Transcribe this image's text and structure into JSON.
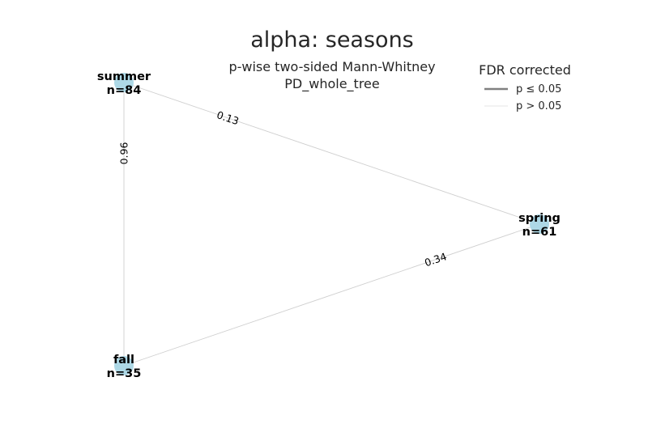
{
  "title": "alpha: seasons",
  "subtitle_lines": [
    "p-wise two-sided Mann-Whitney",
    "PD_whole_tree"
  ],
  "legend": {
    "title": "FDR corrected",
    "entries": [
      {
        "label": "p ≤ 0.05",
        "color": "#808080",
        "style": "thick"
      },
      {
        "label": "p > 0.05",
        "color": "#e6e6e6",
        "style": "thin"
      }
    ]
  },
  "colors": {
    "node": "#add8e6",
    "edge_nonsignificant": "#cfcfcf"
  },
  "nodes": [
    {
      "id": "summer",
      "name": "summer",
      "n_label": "n=84"
    },
    {
      "id": "spring",
      "name": "spring",
      "n_label": "n=61"
    },
    {
      "id": "fall",
      "name": "fall",
      "n_label": "n=35"
    }
  ],
  "edges": [
    {
      "from": "summer",
      "to": "spring",
      "p_label": "0.13",
      "significant": false
    },
    {
      "from": "summer",
      "to": "fall",
      "p_label": "0.96",
      "significant": false
    },
    {
      "from": "fall",
      "to": "spring",
      "p_label": "0.34",
      "significant": false
    }
  ]
}
